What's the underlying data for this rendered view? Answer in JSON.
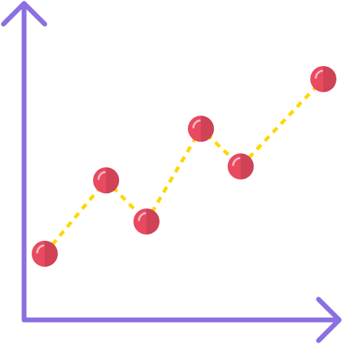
{
  "chart_data": {
    "type": "line",
    "x": [
      0.66,
      2.62,
      3.91,
      5.65,
      6.92,
      9.56
    ],
    "series": [
      {
        "color": "#e84a5f",
        "line_color": "#ffd700",
        "values": [
          2.09,
          4.41,
          3.11,
          6.04,
          4.85,
          7.61
        ]
      }
    ],
    "xlim": [
      0,
      10
    ],
    "ylim": [
      0,
      10
    ],
    "axis_color": "#8c6fe0"
  }
}
